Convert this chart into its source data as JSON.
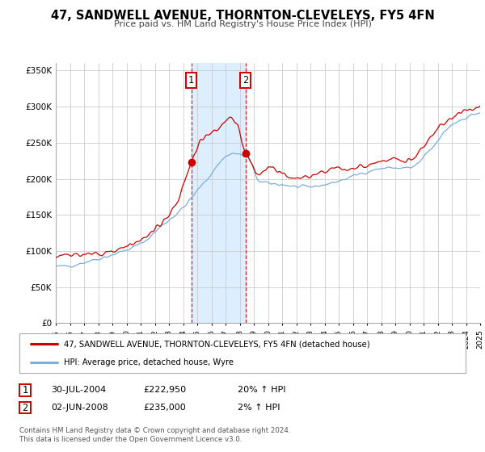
{
  "title": "47, SANDWELL AVENUE, THORNTON-CLEVELEYS, FY5 4FN",
  "subtitle": "Price paid vs. HM Land Registry's House Price Index (HPI)",
  "legend_line1": "47, SANDWELL AVENUE, THORNTON-CLEVELEYS, FY5 4FN (detached house)",
  "legend_line2": "HPI: Average price, detached house, Wyre",
  "sale1_label": "1",
  "sale1_date": "30-JUL-2004",
  "sale1_price": "£222,950",
  "sale1_hpi": "20% ↑ HPI",
  "sale2_label": "2",
  "sale2_date": "02-JUN-2008",
  "sale2_price": "£235,000",
  "sale2_hpi": "2% ↑ HPI",
  "footnote": "Contains HM Land Registry data © Crown copyright and database right 2024.\nThis data is licensed under the Open Government Licence v3.0.",
  "red_color": "#cc0000",
  "blue_color": "#7aaedc",
  "shade_color": "#ddeeff",
  "grid_color": "#cccccc",
  "background_color": "#ffffff",
  "ylim": [
    0,
    360000
  ],
  "yticks": [
    0,
    50000,
    100000,
    150000,
    200000,
    250000,
    300000,
    350000
  ],
  "ytick_labels": [
    "£0",
    "£50K",
    "£100K",
    "£150K",
    "£200K",
    "£250K",
    "£300K",
    "£350K"
  ],
  "sale1_year": 2004.58,
  "sale1_value": 222950,
  "sale2_year": 2008.42,
  "sale2_value": 235000,
  "xlim_start": 1995,
  "xlim_end": 2025
}
